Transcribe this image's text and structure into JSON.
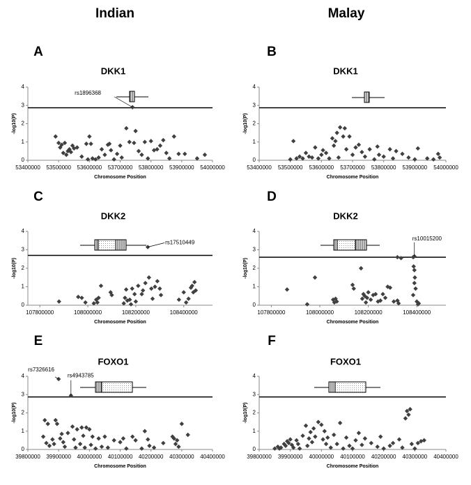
{
  "column_headers": [
    "Indian",
    "Malay"
  ],
  "chart_data": [
    {
      "type": "scatter",
      "panel": "A",
      "title": "DKK1",
      "x_label": "Chromosome Position",
      "y_label": "-log10(P)",
      "color": "#404040",
      "xlim": [
        53400000,
        54000000
      ],
      "xticks": [
        53400000,
        53500000,
        53600000,
        53700000,
        53800000,
        53900000,
        54000000
      ],
      "ylim": [
        0,
        4
      ],
      "yticks": [
        0,
        1,
        2,
        3,
        4
      ],
      "threshold": 2.87,
      "annotations": [
        {
          "text": "rs1896368",
          "x": 53740000,
          "y": 2.9
        }
      ],
      "x": [
        53490000,
        53500000,
        53505000,
        53510000,
        53515000,
        53520000,
        53525000,
        53530000,
        53535000,
        53540000,
        53545000,
        53550000,
        53560000,
        53575000,
        53590000,
        53595000,
        53600000,
        53605000,
        53610000,
        53620000,
        53630000,
        53640000,
        53650000,
        53660000,
        53665000,
        53670000,
        53680000,
        53690000,
        53700000,
        53705000,
        53720000,
        53730000,
        53740000,
        53745000,
        53750000,
        53760000,
        53770000,
        53780000,
        53790000,
        53800000,
        53810000,
        53820000,
        53830000,
        53840000,
        53850000,
        53860000,
        53875000,
        53890000,
        53910000,
        53950000,
        53975000
      ],
      "values": [
        1.3,
        0.95,
        0.7,
        0.85,
        0.4,
        0.95,
        0.3,
        0.5,
        0.6,
        0.45,
        0.8,
        0.65,
        0.7,
        0.2,
        0.9,
        0.05,
        1.3,
        0.9,
        0.1,
        0.05,
        0.15,
        0.6,
        0.3,
        0.85,
        0.9,
        0.55,
        0.05,
        0.35,
        0.8,
        0.15,
        1.75,
        1.0,
        2.9,
        0.95,
        1.6,
        0.5,
        0.3,
        1.0,
        0.1,
        1.05,
        0.55,
        0.6,
        0.8,
        1.1,
        0.4,
        0.1,
        1.3,
        0.35,
        0.35,
        0.1,
        0.3
      ]
    },
    {
      "type": "scatter",
      "panel": "B",
      "title": "DKK1",
      "x_label": "Chromosome Position",
      "y_label": "-log10(P)",
      "color": "#404040",
      "xlim": [
        53400000,
        54000000
      ],
      "xticks": [
        53400000,
        53500000,
        53600000,
        53700000,
        53800000,
        53900000,
        54000000
      ],
      "ylim": [
        0,
        4
      ],
      "yticks": [
        0,
        1,
        2,
        3,
        4
      ],
      "threshold": 2.87,
      "annotations": [],
      "x": [
        53500000,
        53510000,
        53520000,
        53530000,
        53540000,
        53550000,
        53560000,
        53570000,
        53580000,
        53590000,
        53600000,
        53605000,
        53615000,
        53625000,
        53635000,
        53640000,
        53645000,
        53650000,
        53655000,
        53660000,
        53670000,
        53675000,
        53680000,
        53690000,
        53700000,
        53710000,
        53720000,
        53730000,
        53740000,
        53755000,
        53770000,
        53780000,
        53785000,
        53800000,
        53820000,
        53830000,
        53840000,
        53860000,
        53880000,
        53900000,
        53910000,
        53940000,
        53960000,
        53975000,
        53980000
      ],
      "values": [
        0.05,
        1.05,
        0.1,
        0.2,
        0.1,
        0.4,
        0.2,
        0.15,
        0.7,
        0.1,
        0.3,
        0.55,
        0.4,
        0.1,
        1.2,
        0.8,
        1.05,
        1.5,
        0.15,
        1.8,
        1.3,
        1.75,
        0.6,
        1.3,
        0.3,
        0.7,
        0.85,
        0.45,
        0.2,
        0.6,
        0.05,
        0.75,
        0.3,
        0.2,
        0.6,
        0.1,
        0.5,
        0.35,
        0.15,
        0.05,
        0.65,
        0.1,
        0.05,
        0.35,
        0.15
      ]
    },
    {
      "type": "scatter",
      "panel": "C",
      "title": "DKK2",
      "x_label": "Chromosome Position",
      "y_label": "-log10(P)",
      "color": "#404040",
      "xlim": [
        107750000,
        108520000
      ],
      "xticks": [
        107800000,
        108000000,
        108200000,
        108400000
      ],
      "ylim": [
        0,
        4
      ],
      "yticks": [
        0,
        1,
        2,
        3,
        4
      ],
      "threshold": 2.7,
      "annotations": [
        {
          "text": "rs17510449",
          "x": 108250000,
          "y": 3.15
        }
      ],
      "x": [
        107880000,
        107960000,
        107975000,
        107990000,
        108025000,
        108035000,
        108040000,
        108045000,
        108055000,
        108095000,
        108100000,
        108150000,
        108155000,
        108160000,
        108165000,
        108175000,
        108180000,
        108185000,
        108195000,
        108200000,
        108210000,
        108225000,
        108230000,
        108240000,
        108250000,
        108255000,
        108265000,
        108270000,
        108280000,
        108290000,
        108300000,
        108305000,
        108380000,
        108400000,
        108410000,
        108420000,
        108430000,
        108435000,
        108440000,
        108445000,
        108450000
      ],
      "values": [
        0.2,
        0.45,
        0.4,
        0.15,
        0.1,
        0.3,
        0.15,
        0.4,
        1.05,
        0.7,
        0.55,
        0.1,
        0.4,
        0.85,
        0.25,
        0.3,
        0.05,
        0.9,
        0.6,
        0.2,
        1.05,
        0.6,
        0.8,
        1.2,
        3.15,
        1.5,
        0.9,
        0.35,
        1.0,
        1.3,
        0.9,
        0.55,
        0.3,
        0.7,
        0.15,
        0.35,
        0.95,
        1.05,
        0.7,
        1.25,
        0.8
      ]
    },
    {
      "type": "scatter",
      "panel": "D",
      "title": "DKK2",
      "x_label": "Chromosome Position",
      "y_label": "-log10(P)",
      "color": "#404040",
      "xlim": [
        107750000,
        108520000
      ],
      "xticks": [
        107800000,
        108000000,
        108200000,
        108400000
      ],
      "ylim": [
        0,
        4
      ],
      "yticks": [
        0,
        1,
        2,
        3,
        4
      ],
      "threshold": 2.6,
      "annotations": [
        {
          "text": "rs10015200",
          "x": 108390000,
          "y": 2.65
        }
      ],
      "x": [
        107865000,
        107948000,
        107980000,
        108055000,
        108060000,
        108065000,
        108070000,
        108135000,
        108140000,
        108170000,
        108175000,
        108180000,
        108185000,
        108190000,
        108195000,
        108200000,
        108210000,
        108220000,
        108230000,
        108240000,
        108250000,
        108260000,
        108270000,
        108280000,
        108290000,
        108320000,
        108305000,
        108335000,
        108320000,
        108325000,
        108385000,
        108387000,
        108390000,
        108390000,
        108392000,
        108390000,
        108385000,
        108395000,
        108400000,
        108405000,
        108408000
      ],
      "values": [
        0.85,
        0.05,
        1.5,
        0.3,
        0.15,
        0.35,
        0.2,
        1.1,
        0.9,
        2.0,
        0.35,
        0.6,
        0.5,
        0.15,
        0.4,
        0.7,
        0.3,
        0.55,
        0.6,
        0.2,
        0.25,
        0.6,
        0.4,
        1.0,
        0.95,
        2.6,
        0.2,
        2.55,
        0.25,
        0.1,
        2.6,
        2.1,
        2.65,
        1.9,
        1.5,
        1.2,
        0.55,
        0.9,
        0.2,
        0.05,
        0.1
      ]
    },
    {
      "type": "scatter",
      "panel": "E",
      "title": "FOXO1",
      "x_label": "Chromosome Position",
      "y_label": "-log10(P)",
      "color": "#404040",
      "xlim": [
        39800000,
        40400000
      ],
      "xticks": [
        39800000,
        39900000,
        40000000,
        40100000,
        40200000,
        40300000,
        40400000
      ],
      "ylim": [
        0,
        4
      ],
      "yticks": [
        0,
        1,
        2,
        3,
        4
      ],
      "threshold": 2.87,
      "annotations": [
        {
          "text": "rs7326616",
          "x": 39900000,
          "y": 3.85
        },
        {
          "text": "rs4943785",
          "x": 39940000,
          "y": 2.95
        }
      ],
      "x": [
        39850000,
        39855000,
        39860000,
        39865000,
        39870000,
        39880000,
        39885000,
        39890000,
        39895000,
        39900000,
        39905000,
        39910000,
        39915000,
        39920000,
        39930000,
        39940000,
        39945000,
        39950000,
        39955000,
        39960000,
        39970000,
        39975000,
        39980000,
        39985000,
        39990000,
        40000000,
        40005000,
        40010000,
        40020000,
        40030000,
        40040000,
        40050000,
        40060000,
        40080000,
        40100000,
        40110000,
        40120000,
        40140000,
        40150000,
        40170000,
        40180000,
        40190000,
        40195000,
        40210000,
        40240000,
        40270000,
        40275000,
        40280000,
        40285000,
        40290000,
        40300000,
        40320000
      ],
      "values": [
        0.7,
        1.6,
        0.35,
        1.4,
        0.2,
        0.55,
        0.3,
        1.6,
        1.4,
        3.85,
        0.6,
        0.85,
        0.4,
        0.15,
        0.9,
        2.95,
        1.25,
        0.55,
        0.1,
        1.1,
        0.3,
        1.2,
        0.75,
        0.1,
        1.2,
        1.1,
        0.25,
        0.7,
        0.05,
        0.6,
        0.15,
        0.7,
        0.1,
        0.5,
        0.4,
        0.6,
        0.05,
        0.7,
        0.5,
        0.05,
        1.0,
        0.55,
        0.2,
        0.1,
        0.35,
        0.7,
        0.6,
        0.3,
        0.5,
        0.15,
        1.4,
        0.8
      ]
    },
    {
      "type": "scatter",
      "panel": "F",
      "title": "FOXO1",
      "x_label": "Chromosome Position",
      "y_label": "-log10(P)",
      "color": "#404040",
      "xlim": [
        39800000,
        40400000
      ],
      "xticks": [
        39800000,
        39900000,
        40000000,
        40100000,
        40200000,
        40300000,
        40400000
      ],
      "ylim": [
        0,
        4
      ],
      "yticks": [
        0,
        1,
        2,
        3,
        4
      ],
      "threshold": 2.87,
      "annotations": [],
      "x": [
        39850000,
        39860000,
        39865000,
        39870000,
        39880000,
        39885000,
        39890000,
        39895000,
        39900000,
        39905000,
        39910000,
        39920000,
        39925000,
        39930000,
        39940000,
        39950000,
        39955000,
        39960000,
        39965000,
        39970000,
        39975000,
        39980000,
        39990000,
        40000000,
        40005000,
        40010000,
        40015000,
        40020000,
        40030000,
        40040000,
        40050000,
        40060000,
        40070000,
        40080000,
        40090000,
        40100000,
        40110000,
        40120000,
        40130000,
        40140000,
        40160000,
        40180000,
        40190000,
        40200000,
        40220000,
        40230000,
        40250000,
        40260000,
        40270000,
        40275000,
        40280000,
        40285000,
        40290000,
        40300000,
        40310000,
        40320000,
        40330000
      ],
      "values": [
        0.05,
        0.15,
        0.05,
        0.1,
        0.3,
        0.2,
        0.45,
        0.35,
        0.55,
        0.25,
        0.1,
        0.5,
        0.3,
        0.05,
        0.75,
        1.3,
        0.2,
        0.6,
        0.95,
        0.4,
        1.15,
        0.7,
        1.5,
        1.35,
        0.55,
        1.0,
        0.3,
        0.65,
        0.1,
        0.8,
        0.3,
        1.45,
        0.05,
        0.65,
        0.2,
        0.05,
        0.5,
        0.9,
        0.25,
        0.6,
        0.35,
        0.15,
        0.7,
        0.05,
        0.2,
        0.35,
        0.55,
        0.1,
        1.7,
        2.1,
        1.9,
        2.2,
        0.3,
        0.05,
        0.35,
        0.45,
        0.5
      ]
    }
  ]
}
